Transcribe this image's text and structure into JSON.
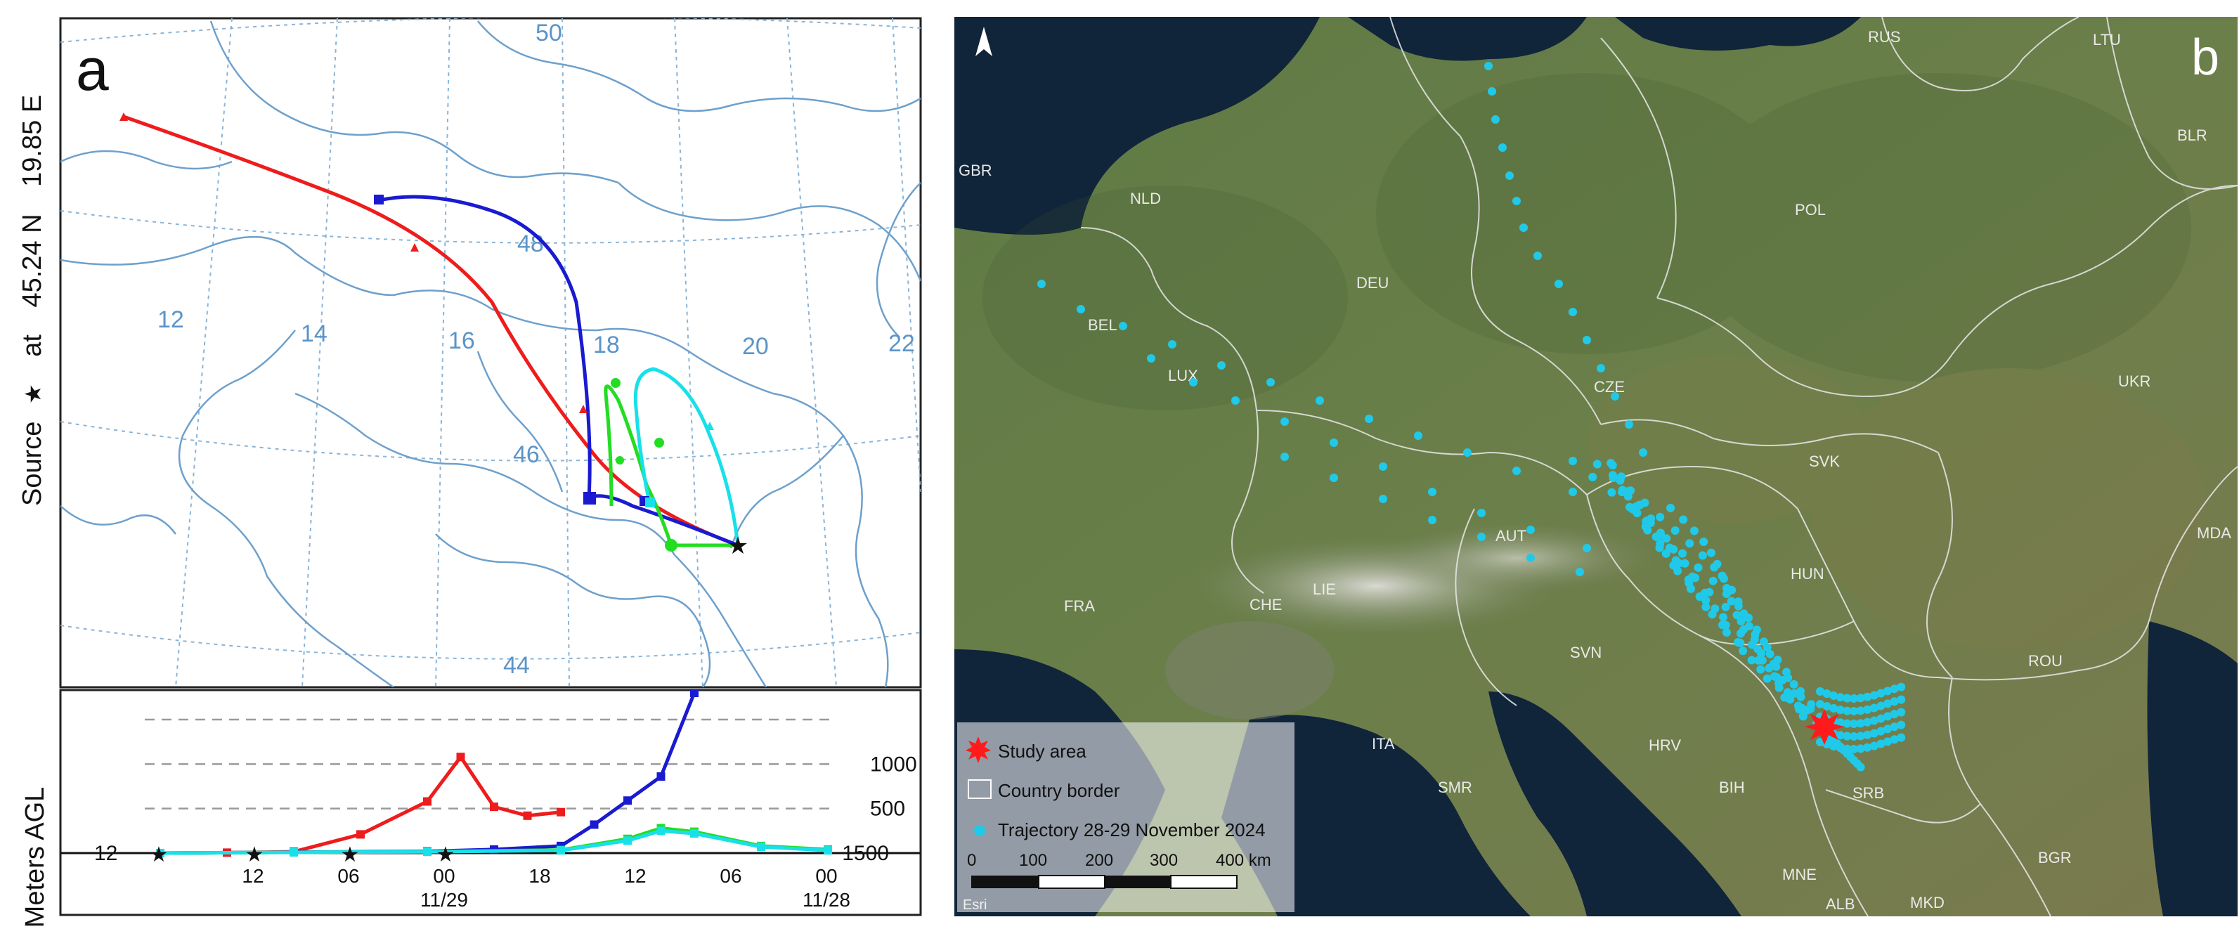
{
  "panel_a": {
    "label": "a",
    "side_title": {
      "source": "Source",
      "star": "★",
      "at": "at",
      "lat": "45.24 N",
      "lon": "19.85 E"
    },
    "map_lat_labels": [
      "50",
      "48",
      "46",
      "44"
    ],
    "map_lon_labels": [
      "12",
      "14",
      "16",
      "18",
      "20",
      "22"
    ],
    "colors": {
      "red": "#ee1c1c",
      "blue": "#1a1ad0",
      "green": "#22dd22",
      "cyan": "#19e0e8",
      "grid": "#8ab4d8",
      "border": "#6ea0cc",
      "labels": "#5b95c8"
    },
    "chart_data": {
      "type": "line",
      "ylabel": "Meters AGL",
      "y_ticks": [
        "1500",
        "1000",
        "500"
      ],
      "ylim": [
        0,
        1800
      ],
      "x_tick_labels": [
        "12",
        "06",
        "00",
        "18",
        "12",
        "06",
        "00"
      ],
      "x_date_labels": [
        "11/29",
        "11/28"
      ],
      "start_level_label": "12",
      "grid": "dashed horizontal at 500, 1000, 1500",
      "series": [
        {
          "color": "#ee1c1c",
          "x": [
            60,
            54,
            48,
            42,
            36,
            33,
            30,
            27,
            24
          ],
          "y": [
            0,
            5,
            15,
            210,
            580,
            1080,
            520,
            420,
            460
          ]
        },
        {
          "color": "#1a1ad0",
          "x": [
            60,
            48,
            36,
            30,
            24,
            21,
            18,
            15,
            12
          ],
          "y": [
            0,
            10,
            20,
            40,
            80,
            320,
            590,
            860,
            1800
          ]
        },
        {
          "color": "#22dd22",
          "x": [
            60,
            48,
            36,
            24,
            18,
            15,
            12,
            6,
            0
          ],
          "y": [
            0,
            8,
            15,
            35,
            160,
            280,
            240,
            80,
            40
          ]
        },
        {
          "color": "#19e0e8",
          "x": [
            60,
            48,
            36,
            24,
            18,
            15,
            12,
            6,
            0
          ],
          "y": [
            0,
            8,
            15,
            30,
            140,
            250,
            220,
            70,
            30
          ]
        }
      ]
    }
  },
  "panel_b": {
    "label": "b",
    "north_icon": "north-arrow-icon",
    "countries": [
      "RUS",
      "LTU",
      "BLR",
      "GBR",
      "NLD",
      "POL",
      "DEU",
      "BEL",
      "LUX",
      "CZE",
      "UKR",
      "SVK",
      "MDA",
      "AUT",
      "HUN",
      "FRA",
      "CHE",
      "LIE",
      "ROU",
      "SVN",
      "ITA",
      "HRV",
      "SMR",
      "BIH",
      "SRB",
      "BGR",
      "MNE",
      "ALB",
      "MKD"
    ],
    "legend": {
      "study_area": "Study area",
      "country_border": "Country border",
      "trajectory": "Trajectory 28-29 November 2024"
    },
    "scale_labels": [
      "0",
      "100",
      "200",
      "300",
      "400 km"
    ],
    "attribution": "Esri",
    "colors": {
      "trajectory": "#21c9e8",
      "study": "#ff1b1b"
    }
  }
}
